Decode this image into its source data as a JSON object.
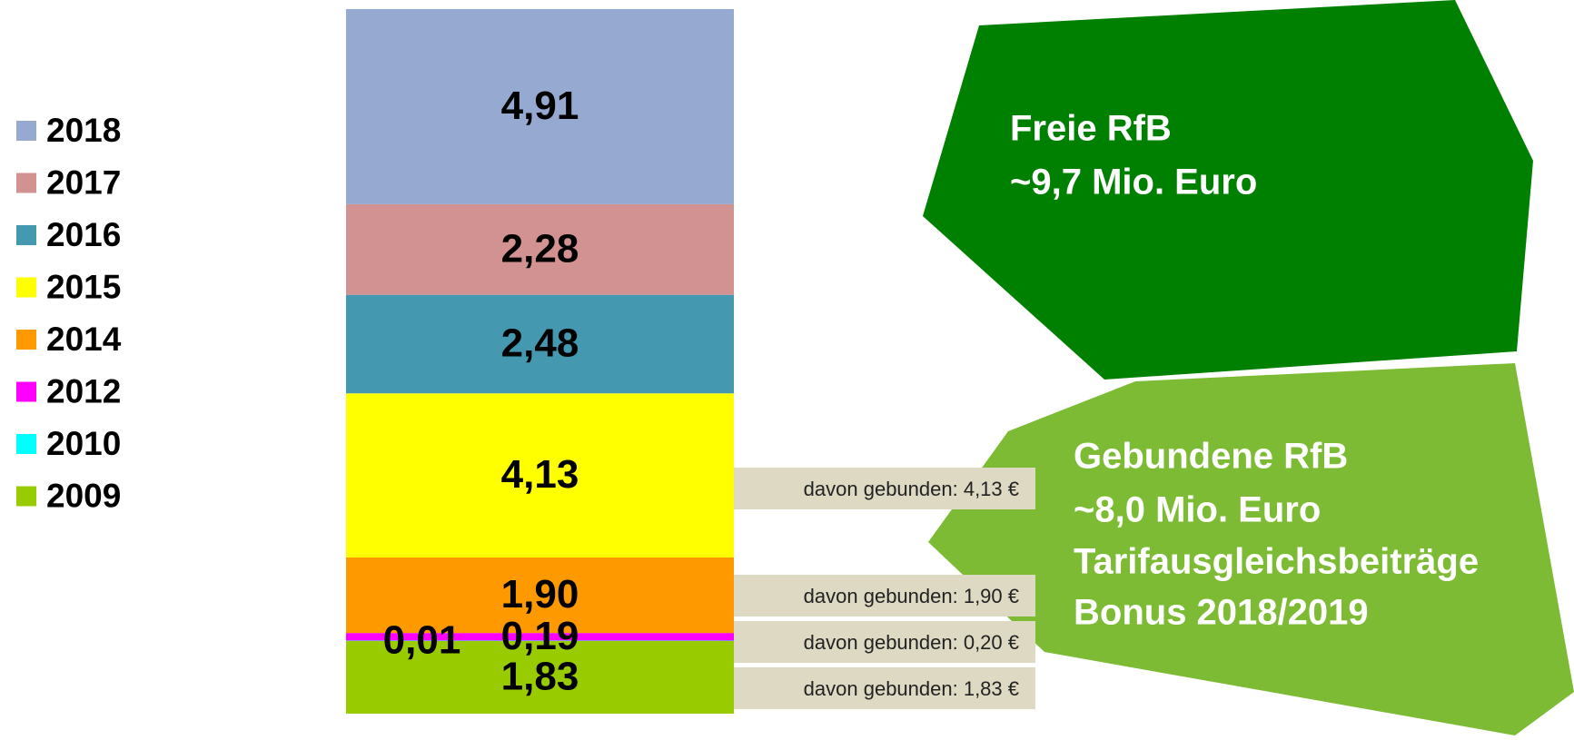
{
  "chart_data": {
    "type": "stacked_bar",
    "categories": [
      null
    ],
    "series": [
      {
        "name": "2009",
        "color": "#99cc00",
        "values": [
          1.83
        ],
        "value_labels": [
          "1,83"
        ]
      },
      {
        "name": "2010",
        "color": "#00ffff",
        "values": [
          0.01
        ],
        "value_labels": [
          "0,01"
        ]
      },
      {
        "name": "2012",
        "color": "#ff00ff",
        "values": [
          0.19
        ],
        "value_labels": [
          "0,19"
        ]
      },
      {
        "name": "2014",
        "color": "#ff9900",
        "values": [
          1.9
        ],
        "value_labels": [
          "1,90"
        ]
      },
      {
        "name": "2015",
        "color": "#ffff00",
        "values": [
          4.13
        ],
        "value_labels": [
          "4,13"
        ]
      },
      {
        "name": "2016",
        "color": "#4499b1",
        "values": [
          2.48
        ],
        "value_labels": [
          "2,48"
        ]
      },
      {
        "name": "2017",
        "color": "#d39292",
        "values": [
          2.28
        ],
        "value_labels": [
          "2,28"
        ]
      },
      {
        "name": "2018",
        "color": "#95a9d1",
        "values": [
          4.91
        ],
        "value_labels": [
          "4,91"
        ]
      }
    ],
    "callouts": [
      "davon gebunden: 4,13 €",
      "davon gebunden: 1,90 €",
      "davon gebunden: 0,20 €",
      "davon gebunden: 1,83 €"
    ],
    "annotations": {
      "free": [
        "Freie RfB",
        "~9,7 Mio. Euro"
      ],
      "bound": [
        "Gebundene RfB",
        "~8,0 Mio. Euro",
        "Tarifausgleichsbeiträge",
        "Bonus 2018/2019"
      ]
    }
  }
}
